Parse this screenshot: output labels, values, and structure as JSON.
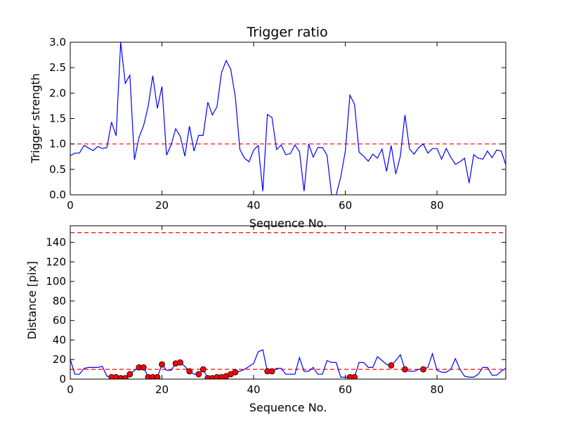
{
  "chart_data": [
    {
      "type": "line",
      "title": "Trigger ratio",
      "xlabel": "Sequence No.",
      "ylabel": "Trigger strength",
      "xlim": [
        0,
        95
      ],
      "ylim": [
        0,
        3.0
      ],
      "xticks": [
        "0",
        "20",
        "40",
        "60",
        "80"
      ],
      "yticks": [
        "0.0",
        "0.5",
        "1.0",
        "1.5",
        "2.0",
        "2.5",
        "3.0"
      ],
      "grid": false,
      "line_color": "#0000ff",
      "reference_lines": [
        {
          "y": 1.0,
          "color": "#ff0000",
          "style": "dashed"
        }
      ],
      "series": [
        {
          "x": [
            0,
            1,
            2,
            3,
            4,
            5,
            6,
            7,
            8,
            9,
            10,
            11,
            12,
            13,
            14,
            15,
            16,
            17,
            18,
            19,
            20,
            21,
            22,
            23,
            24,
            25,
            26,
            27,
            28,
            29,
            30,
            31,
            32,
            33,
            34,
            35,
            36,
            37,
            38,
            39,
            40,
            41,
            42,
            43,
            44,
            45,
            46,
            47,
            48,
            49,
            50,
            51,
            52,
            53,
            54,
            55,
            56,
            57,
            58,
            59,
            60,
            61,
            62,
            63,
            64,
            65,
            66,
            67,
            68,
            69,
            70,
            71,
            72,
            73,
            74,
            75,
            76,
            77,
            78,
            79,
            80,
            81,
            82,
            83,
            84,
            85,
            86,
            87,
            88,
            89,
            90,
            91,
            92,
            93,
            94,
            95
          ],
          "values": [
            0.77,
            0.82,
            0.82,
            0.97,
            0.92,
            0.87,
            0.95,
            0.91,
            0.93,
            1.43,
            1.16,
            3.0,
            2.19,
            2.35,
            0.69,
            1.13,
            1.36,
            1.74,
            2.34,
            1.7,
            2.13,
            0.78,
            0.98,
            1.3,
            1.15,
            0.76,
            1.35,
            0.86,
            1.17,
            1.17,
            1.82,
            1.57,
            1.73,
            2.4,
            2.64,
            2.47,
            1.93,
            0.89,
            0.72,
            0.65,
            0.88,
            0.97,
            0.07,
            1.58,
            1.52,
            0.89,
            0.98,
            0.79,
            0.81,
            0.98,
            0.85,
            0.07,
            1.0,
            0.74,
            0.93,
            0.93,
            0.78,
            0.0,
            0.0,
            0.35,
            0.86,
            1.96,
            1.78,
            0.84,
            0.76,
            0.66,
            0.8,
            0.72,
            0.9,
            0.46,
            0.97,
            0.41,
            0.76,
            1.57,
            0.9,
            0.8,
            0.93,
            1.0,
            0.82,
            0.91,
            0.91,
            0.7,
            0.91,
            0.74,
            0.6,
            0.65,
            0.72,
            0.23,
            0.79,
            0.72,
            0.7,
            0.86,
            0.73,
            0.88,
            0.86,
            0.59
          ]
        }
      ]
    },
    {
      "type": "line",
      "title": "",
      "xlabel": "Sequence No.",
      "ylabel": "Distance [pix]",
      "xlim": [
        0,
        95
      ],
      "ylim": [
        0,
        157
      ],
      "xticks": [
        "0",
        "20",
        "40",
        "60",
        "80"
      ],
      "yticks": [
        "0",
        "20",
        "40",
        "60",
        "80",
        "100",
        "120",
        "140"
      ],
      "grid": false,
      "line_color": "#0000ff",
      "marker_color": "#ff0000",
      "reference_lines": [
        {
          "y": 150,
          "color": "#ff0000",
          "style": "dashed"
        },
        {
          "y": 10,
          "color": "#ff0000",
          "style": "dashed"
        }
      ],
      "series": [
        {
          "x": [
            0,
            1,
            2,
            3,
            4,
            5,
            6,
            7,
            8,
            9,
            10,
            11,
            12,
            13,
            14,
            15,
            16,
            17,
            18,
            19,
            20,
            21,
            22,
            23,
            24,
            25,
            26,
            27,
            28,
            29,
            30,
            31,
            32,
            33,
            34,
            35,
            36,
            37,
            38,
            39,
            40,
            41,
            42,
            43,
            44,
            45,
            46,
            47,
            48,
            49,
            50,
            51,
            52,
            53,
            54,
            55,
            56,
            57,
            58,
            59,
            60,
            61,
            62,
            63,
            64,
            65,
            66,
            67,
            68,
            69,
            70,
            71,
            72,
            73,
            74,
            75,
            76,
            77,
            78,
            79,
            80,
            81,
            82,
            83,
            84,
            85,
            86,
            87,
            88,
            89,
            90,
            91,
            92,
            93,
            94,
            95
          ],
          "values": [
            20,
            5,
            5,
            11,
            12,
            12,
            12,
            13,
            3,
            2,
            2,
            1,
            1,
            5,
            9,
            12,
            12,
            2,
            2,
            2,
            15,
            9,
            9,
            16,
            17,
            13,
            8,
            5,
            5,
            10,
            1,
            1,
            2,
            2,
            3,
            5,
            7,
            8,
            10,
            13,
            16,
            28,
            30,
            8,
            8,
            11,
            11,
            5,
            5,
            5,
            22,
            8,
            8,
            12,
            5,
            5,
            19,
            17,
            17,
            2,
            2,
            2,
            2,
            17,
            17,
            12,
            12,
            23,
            19,
            15,
            14,
            19,
            25,
            10,
            8,
            8,
            10,
            10,
            12,
            26,
            9,
            7,
            7,
            10,
            21,
            10,
            3,
            2,
            2,
            5,
            12,
            12,
            4,
            4,
            8,
            11
          ]
        }
      ],
      "markers": {
        "x": [
          9,
          10,
          11,
          12,
          13,
          15,
          16,
          17,
          18,
          19,
          20,
          23,
          24,
          26,
          28,
          29,
          30,
          31,
          32,
          33,
          34,
          35,
          36,
          43,
          44,
          61,
          62,
          70,
          73,
          77
        ],
        "values": [
          2,
          2,
          1,
          1,
          5,
          12,
          12,
          2,
          2,
          2,
          15,
          16,
          17,
          8,
          5,
          10,
          1,
          1,
          2,
          2,
          3,
          5,
          7,
          8,
          8,
          2,
          2,
          14,
          10,
          10
        ]
      }
    }
  ]
}
